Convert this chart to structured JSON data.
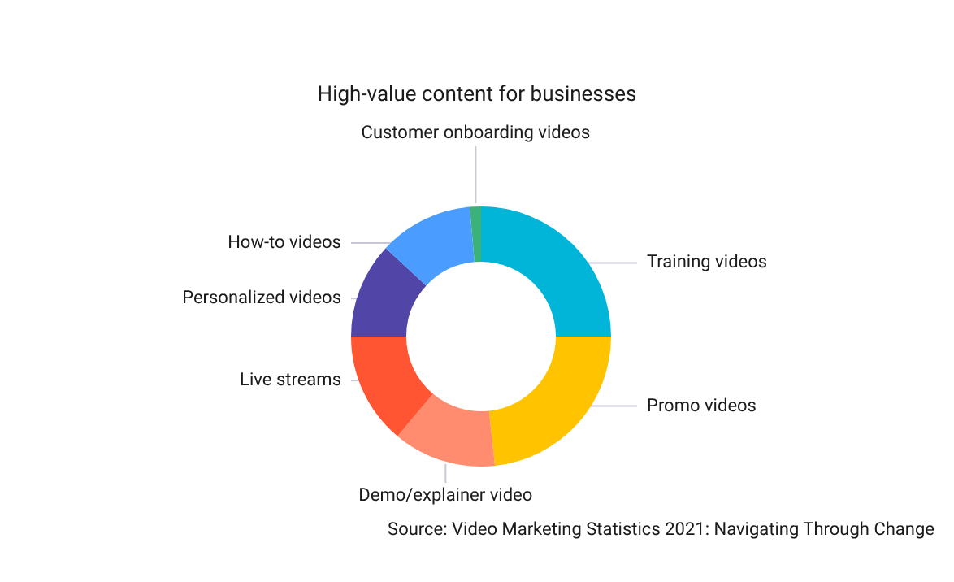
{
  "chart_data": {
    "type": "donut",
    "title": "High-value content for businesses",
    "categories": [
      "Training videos",
      "Promo videos",
      "Demo/explainer video",
      "Live streams",
      "Personalized videos",
      "How-to videos",
      "Customer onboarding videos"
    ],
    "values": [
      25,
      23.3,
      12.8,
      13.9,
      11.9,
      11.7,
      1.4
    ],
    "colors": [
      "#00b5d8",
      "#ffc300",
      "#ff8c6e",
      "#ff5533",
      "#5146a8",
      "#4a9dff",
      "#3bb27a"
    ],
    "annotations": [
      "Source: Video Marketing Statistics 2021: Navigating Through Change"
    ]
  }
}
